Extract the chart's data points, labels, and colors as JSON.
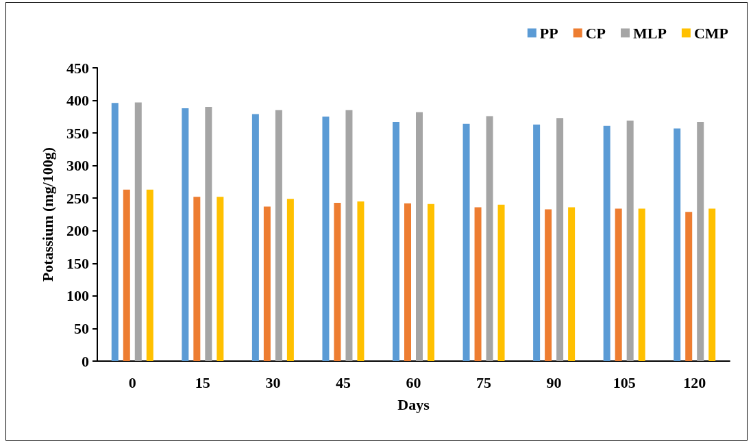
{
  "chart_data": {
    "type": "bar",
    "xlabel": "Days",
    "ylabel": "Potassium (mg/100g)",
    "categories": [
      "0",
      "15",
      "30",
      "45",
      "60",
      "75",
      "90",
      "105",
      "120"
    ],
    "series": [
      {
        "name": "PP",
        "color": "#5b9bd5",
        "values": [
          396,
          388,
          379,
          375,
          367,
          364,
          363,
          361,
          357
        ]
      },
      {
        "name": "CP",
        "color": "#ed7d31",
        "values": [
          263,
          252,
          237,
          243,
          242,
          236,
          233,
          234,
          229
        ]
      },
      {
        "name": "MLP",
        "color": "#a5a5a5",
        "values": [
          397,
          390,
          385,
          385,
          382,
          376,
          373,
          369,
          367
        ]
      },
      {
        "name": "CMP",
        "color": "#ffc000",
        "values": [
          263,
          252,
          249,
          245,
          241,
          240,
          236,
          234,
          234
        ]
      }
    ],
    "ylim": [
      0,
      450
    ],
    "yticks": [
      0,
      50,
      100,
      150,
      200,
      250,
      300,
      350,
      400,
      450
    ],
    "grid": false,
    "legend": "top right"
  }
}
